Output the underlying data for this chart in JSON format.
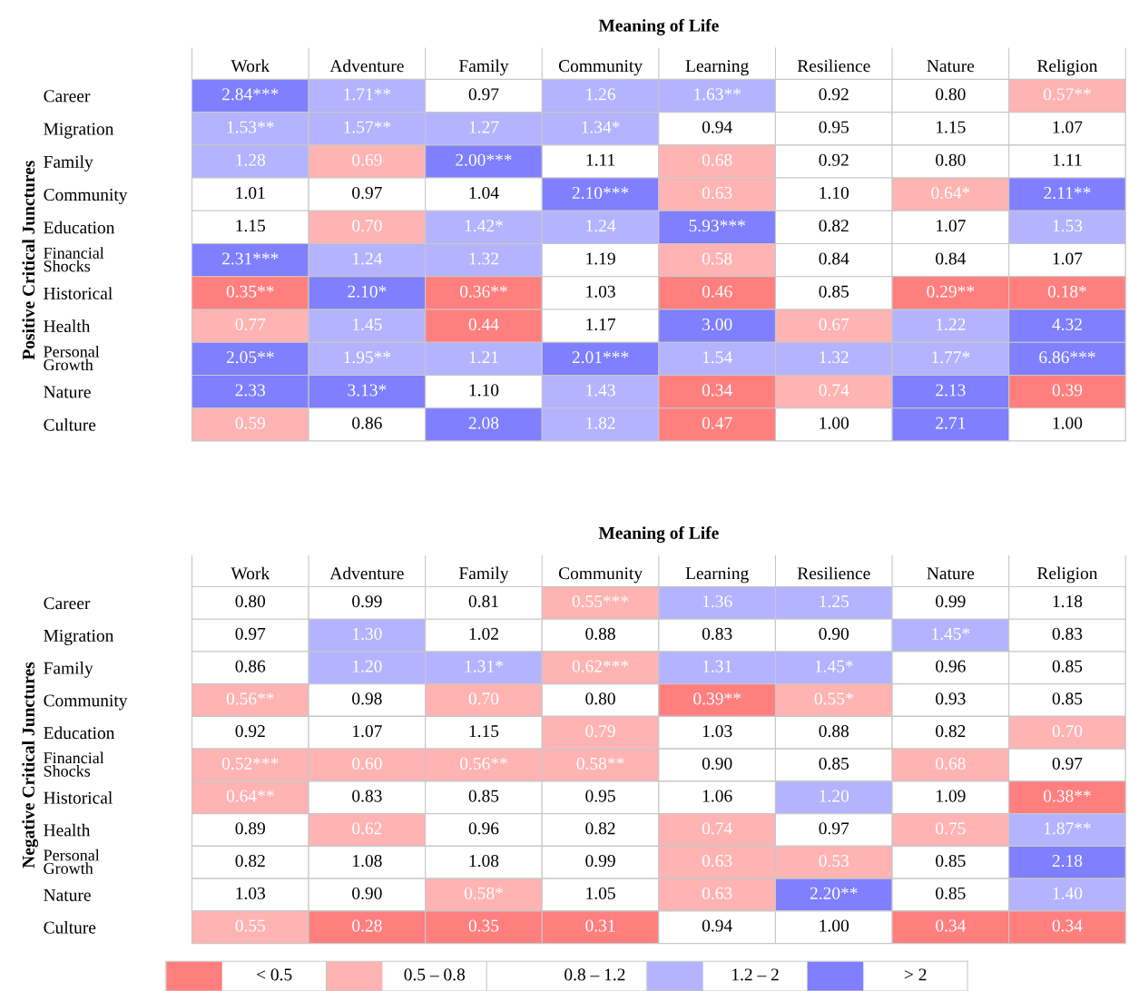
{
  "chart_data": [
    {
      "type": "heatmap",
      "title": "Meaning of Life",
      "ylabel": "Positive Critical Junctures",
      "categories": [
        "Work",
        "Adventure",
        "Family",
        "Community",
        "Learning",
        "Resilience",
        "Nature",
        "Religion"
      ],
      "y_categories": [
        "Career",
        "Migration",
        "Family",
        "Community",
        "Education",
        "Financial\nShocks",
        "Historical",
        "Health",
        "Personal\nGrowth",
        "Nature",
        "Culture"
      ],
      "cells": [
        [
          2.84,
          1.71,
          0.97,
          1.26,
          1.63,
          0.92,
          0.8,
          0.57
        ],
        [
          1.53,
          1.57,
          1.27,
          1.34,
          0.94,
          0.95,
          1.15,
          1.07
        ],
        [
          1.28,
          0.69,
          2.0,
          1.11,
          0.68,
          0.92,
          0.8,
          1.11
        ],
        [
          1.01,
          0.97,
          1.04,
          2.1,
          0.63,
          1.1,
          0.64,
          2.11
        ],
        [
          1.15,
          0.7,
          1.42,
          1.24,
          5.93,
          0.82,
          1.07,
          1.53
        ],
        [
          2.31,
          1.24,
          1.32,
          1.19,
          0.58,
          0.84,
          0.84,
          1.07
        ],
        [
          0.35,
          2.1,
          0.36,
          1.03,
          0.46,
          0.85,
          0.29,
          0.18
        ],
        [
          0.77,
          1.45,
          0.44,
          1.17,
          3.0,
          0.67,
          1.22,
          4.32
        ],
        [
          2.05,
          1.95,
          1.21,
          2.01,
          1.54,
          1.32,
          1.77,
          6.86
        ],
        [
          2.33,
          3.13,
          1.1,
          1.43,
          0.34,
          0.74,
          2.13,
          0.39
        ],
        [
          0.59,
          0.86,
          2.08,
          1.82,
          0.47,
          1.0,
          2.71,
          1.0
        ]
      ],
      "cell_labels": [
        [
          "2.84***",
          "1.71**",
          "0.97",
          "1.26",
          "1.63**",
          "0.92",
          "0.80",
          "0.57**"
        ],
        [
          "1.53**",
          "1.57**",
          "1.27",
          "1.34*",
          "0.94",
          "0.95",
          "1.15",
          "1.07"
        ],
        [
          "1.28",
          "0.69",
          "2.00***",
          "1.11",
          "0.68",
          "0.92",
          "0.80",
          "1.11"
        ],
        [
          "1.01",
          "0.97",
          "1.04",
          "2.10***",
          "0.63",
          "1.10",
          "0.64*",
          "2.11**"
        ],
        [
          "1.15",
          "0.70",
          "1.42*",
          "1.24",
          "5.93***",
          "0.82",
          "1.07",
          "1.53"
        ],
        [
          "2.31***",
          "1.24",
          "1.32",
          "1.19",
          "0.58",
          "0.84",
          "0.84",
          "1.07"
        ],
        [
          "0.35**",
          "2.10*",
          "0.36**",
          "1.03",
          "0.46",
          "0.85",
          "0.29**",
          "0.18*"
        ],
        [
          "0.77",
          "1.45",
          "0.44",
          "1.17",
          "3.00",
          "0.67",
          "1.22",
          "4.32"
        ],
        [
          "2.05**",
          "1.95**",
          "1.21",
          "2.01***",
          "1.54",
          "1.32",
          "1.77*",
          "6.86***"
        ],
        [
          "2.33",
          "3.13*",
          "1.10",
          "1.43",
          "0.34",
          "0.74",
          "2.13",
          "0.39"
        ],
        [
          "0.59",
          "0.86",
          "2.08",
          "1.82",
          "0.47",
          "1.00",
          "2.71",
          "1.00"
        ]
      ],
      "colors": [
        [
          "#7f7fff",
          "#b3b3ff",
          "#ffffff",
          "#b3b3ff",
          "#b3b3ff",
          "#ffffff",
          "#ffffff",
          "#ffb3b3"
        ],
        [
          "#b3b3ff",
          "#b3b3ff",
          "#b3b3ff",
          "#b3b3ff",
          "#ffffff",
          "#ffffff",
          "#ffffff",
          "#ffffff"
        ],
        [
          "#b3b3ff",
          "#ffb3b3",
          "#7f7fff",
          "#ffffff",
          "#ffb3b3",
          "#ffffff",
          "#ffffff",
          "#ffffff"
        ],
        [
          "#ffffff",
          "#ffffff",
          "#ffffff",
          "#7f7fff",
          "#ffb3b3",
          "#ffffff",
          "#ffb3b3",
          "#7f7fff"
        ],
        [
          "#ffffff",
          "#ffb3b3",
          "#b3b3ff",
          "#b3b3ff",
          "#7f7fff",
          "#ffffff",
          "#ffffff",
          "#b3b3ff"
        ],
        [
          "#7f7fff",
          "#b3b3ff",
          "#b3b3ff",
          "#ffffff",
          "#ffb3b3",
          "#ffffff",
          "#ffffff",
          "#ffffff"
        ],
        [
          "#ff7f7f",
          "#7f7fff",
          "#ff7f7f",
          "#ffffff",
          "#ff7f7f",
          "#ffffff",
          "#ff7f7f",
          "#ff7f7f"
        ],
        [
          "#ffb3b3",
          "#b3b3ff",
          "#ff7f7f",
          "#ffffff",
          "#7f7fff",
          "#ffb3b3",
          "#b3b3ff",
          "#7f7fff"
        ],
        [
          "#7f7fff",
          "#b3b3ff",
          "#b3b3ff",
          "#7f7fff",
          "#b3b3ff",
          "#b3b3ff",
          "#b3b3ff",
          "#7f7fff"
        ],
        [
          "#7f7fff",
          "#7f7fff",
          "#ffffff",
          "#b3b3ff",
          "#ff7f7f",
          "#ffb3b3",
          "#7f7fff",
          "#ff7f7f"
        ],
        [
          "#ffb3b3",
          "#ffffff",
          "#7f7fff",
          "#b3b3ff",
          "#ff7f7f",
          "#ffffff",
          "#7f7fff",
          "#ffffff"
        ]
      ]
    },
    {
      "type": "heatmap",
      "title": "Meaning of Life",
      "ylabel": "Negative Critical Junctures",
      "categories": [
        "Work",
        "Adventure",
        "Family",
        "Community",
        "Learning",
        "Resilience",
        "Nature",
        "Religion"
      ],
      "y_categories": [
        "Career",
        "Migration",
        "Family",
        "Community",
        "Education",
        "Financial\nShocks",
        "Historical",
        "Health",
        "Personal\nGrowth",
        "Nature",
        "Culture"
      ],
      "cells": [
        [
          0.8,
          0.99,
          0.81,
          0.55,
          1.36,
          1.25,
          0.99,
          1.18
        ],
        [
          0.97,
          1.3,
          1.02,
          0.88,
          0.83,
          0.9,
          1.45,
          0.83
        ],
        [
          0.86,
          1.2,
          1.31,
          0.62,
          1.31,
          1.45,
          0.96,
          0.85
        ],
        [
          0.56,
          0.98,
          0.7,
          0.8,
          0.39,
          0.55,
          0.93,
          0.85
        ],
        [
          0.92,
          1.07,
          1.15,
          0.79,
          1.03,
          0.88,
          0.82,
          0.7
        ],
        [
          0.52,
          0.6,
          0.56,
          0.58,
          0.9,
          0.85,
          0.68,
          0.97
        ],
        [
          0.64,
          0.83,
          0.85,
          0.95,
          1.06,
          1.2,
          1.09,
          0.38
        ],
        [
          0.89,
          0.62,
          0.96,
          0.82,
          0.74,
          0.97,
          0.75,
          1.87
        ],
        [
          0.82,
          1.08,
          1.08,
          0.99,
          0.63,
          0.53,
          0.85,
          2.18
        ],
        [
          1.03,
          0.9,
          0.58,
          1.05,
          0.63,
          2.2,
          0.85,
          1.4
        ],
        [
          0.55,
          0.28,
          0.35,
          0.31,
          0.94,
          1.0,
          0.34,
          0.34
        ]
      ],
      "cell_labels": [
        [
          "0.80",
          "0.99",
          "0.81",
          "0.55***",
          "1.36",
          "1.25",
          "0.99",
          "1.18"
        ],
        [
          "0.97",
          "1.30",
          "1.02",
          "0.88",
          "0.83",
          "0.90",
          "1.45*",
          "0.83"
        ],
        [
          "0.86",
          "1.20",
          "1.31*",
          "0.62***",
          "1.31",
          "1.45*",
          "0.96",
          "0.85"
        ],
        [
          "0.56**",
          "0.98",
          "0.70",
          "0.80",
          "0.39**",
          "0.55*",
          "0.93",
          "0.85"
        ],
        [
          "0.92",
          "1.07",
          "1.15",
          "0.79",
          "1.03",
          "0.88",
          "0.82",
          "0.70"
        ],
        [
          "0.52***",
          "0.60",
          "0.56**",
          "0.58**",
          "0.90",
          "0.85",
          "0.68",
          "0.97"
        ],
        [
          "0.64**",
          "0.83",
          "0.85",
          "0.95",
          "1.06",
          "1.20",
          "1.09",
          "0.38**"
        ],
        [
          "0.89",
          "0.62",
          "0.96",
          "0.82",
          "0.74",
          "0.97",
          "0.75",
          "1.87**"
        ],
        [
          "0.82",
          "1.08",
          "1.08",
          "0.99",
          "0.63",
          "0.53",
          "0.85",
          "2.18"
        ],
        [
          "1.03",
          "0.90",
          "0.58*",
          "1.05",
          "0.63",
          "2.20**",
          "0.85",
          "1.40"
        ],
        [
          "0.55",
          "0.28",
          "0.35",
          "0.31",
          "0.94",
          "1.00",
          "0.34",
          "0.34"
        ]
      ],
      "colors": [
        [
          "#ffffff",
          "#ffffff",
          "#ffffff",
          "#ffb3b3",
          "#b3b3ff",
          "#b3b3ff",
          "#ffffff",
          "#ffffff"
        ],
        [
          "#ffffff",
          "#b3b3ff",
          "#ffffff",
          "#ffffff",
          "#ffffff",
          "#ffffff",
          "#b3b3ff",
          "#ffffff"
        ],
        [
          "#ffffff",
          "#b3b3ff",
          "#b3b3ff",
          "#ffb3b3",
          "#b3b3ff",
          "#b3b3ff",
          "#ffffff",
          "#ffffff"
        ],
        [
          "#ffb3b3",
          "#ffffff",
          "#ffb3b3",
          "#ffffff",
          "#ff7f7f",
          "#ffb3b3",
          "#ffffff",
          "#ffffff"
        ],
        [
          "#ffffff",
          "#ffffff",
          "#ffffff",
          "#ffb3b3",
          "#ffffff",
          "#ffffff",
          "#ffffff",
          "#ffb3b3"
        ],
        [
          "#ffb3b3",
          "#ffb3b3",
          "#ffb3b3",
          "#ffb3b3",
          "#ffffff",
          "#ffffff",
          "#ffb3b3",
          "#ffffff"
        ],
        [
          "#ffb3b3",
          "#ffffff",
          "#ffffff",
          "#ffffff",
          "#ffffff",
          "#b3b3ff",
          "#ffffff",
          "#ff7f7f"
        ],
        [
          "#ffffff",
          "#ffb3b3",
          "#ffffff",
          "#ffffff",
          "#ffb3b3",
          "#ffffff",
          "#ffb3b3",
          "#b3b3ff"
        ],
        [
          "#ffffff",
          "#ffffff",
          "#ffffff",
          "#ffffff",
          "#ffb3b3",
          "#ffb3b3",
          "#ffffff",
          "#7f7fff"
        ],
        [
          "#ffffff",
          "#ffffff",
          "#ffb3b3",
          "#ffffff",
          "#ffb3b3",
          "#7f7fff",
          "#ffffff",
          "#b3b3ff"
        ],
        [
          "#ffb3b3",
          "#ff7f7f",
          "#ff7f7f",
          "#ff7f7f",
          "#ffffff",
          "#ffffff",
          "#ff7f7f",
          "#ff7f7f"
        ]
      ]
    },
    {
      "type": "other",
      "categories": [
        "< 0.5",
        "0.5 – 0.8",
        "0.8 – 1.2",
        "1.2 – 2",
        "> 2"
      ],
      "colors": [
        "#ff7f7f",
        "#ffb3b3",
        "#ffffff",
        "#b3b3ff",
        "#7f7fff"
      ]
    }
  ]
}
